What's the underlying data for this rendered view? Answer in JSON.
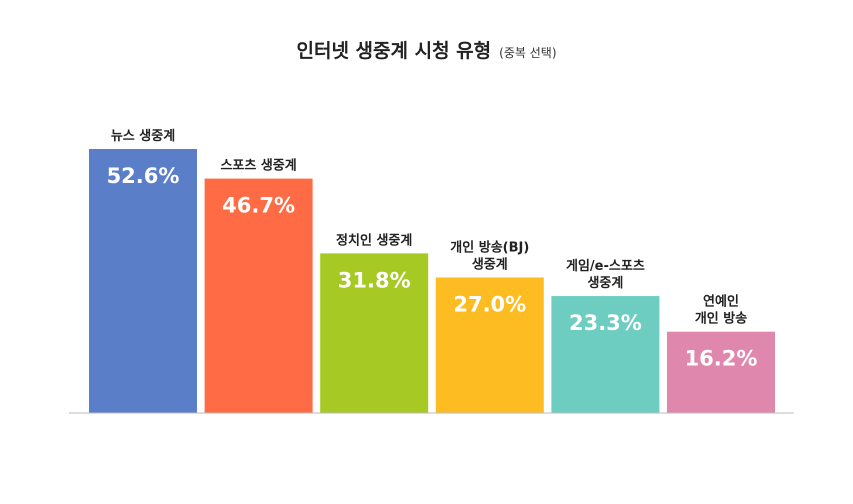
{
  "title": "인터넷 생중계 시청 유형",
  "subtitle": "(중복 선택)",
  "chart_data": {
    "type": "bar",
    "title": "인터넷 생중계 시청 유형",
    "subtitle": "(중복 선택)",
    "unit": "%",
    "categories": [
      [
        "뉴스 생중계"
      ],
      [
        "스포츠 생중계"
      ],
      [
        "정치인 생중계"
      ],
      [
        "개인 방송(BJ)",
        "생중계"
      ],
      [
        "게임/e-스포츠",
        "생중계"
      ],
      [
        "연예인",
        "개인 방송"
      ]
    ],
    "values": [
      52.6,
      46.7,
      31.8,
      27.0,
      23.3,
      16.2
    ],
    "value_labels": [
      "52.6%",
      "46.7%",
      "31.8%",
      "27.0%",
      "23.3%",
      "16.2%"
    ],
    "colors": [
      "#5b7ec9",
      "#fe6b44",
      "#a6c924",
      "#fdbc22",
      "#6ccdc0",
      "#e087ae"
    ],
    "grid": false,
    "legend": "none"
  }
}
